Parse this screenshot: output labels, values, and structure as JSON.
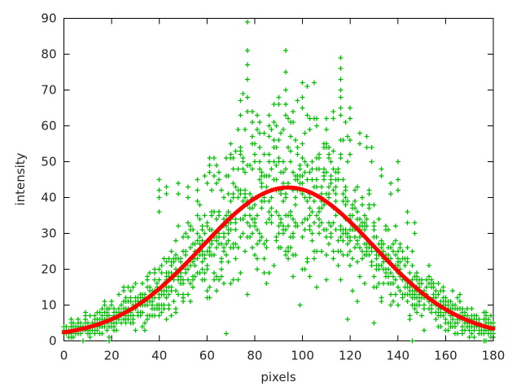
{
  "page": {
    "background": "#ffffff"
  },
  "chart_data": {
    "type": "scatter",
    "title": "",
    "xlabel": "pixels",
    "ylabel": "intensity",
    "xlim": [
      0,
      180
    ],
    "ylim": [
      0,
      90
    ],
    "xtick_values": [
      0,
      20,
      40,
      60,
      80,
      100,
      120,
      140,
      160,
      180
    ],
    "xtick_labels": [
      "0",
      "20",
      "40",
      "60",
      "80",
      "100",
      "120",
      "140",
      "160",
      "180"
    ],
    "ytick_values": [
      0,
      10,
      20,
      30,
      40,
      50,
      60,
      70,
      80,
      90
    ],
    "ytick_labels": [
      "0",
      "10",
      "20",
      "30",
      "40",
      "50",
      "60",
      "70",
      "80",
      "90"
    ],
    "grid": false,
    "legend_position": "none",
    "frame_color": "#000000",
    "text_color": "#262626",
    "scatter_series": {
      "name": "pixel-intensity-samples",
      "marker": "plus",
      "marker_color": "#00BF00",
      "marker_size_px": 7,
      "sampling": {
        "seed": 20140214,
        "x_min": 0,
        "x_max": 180,
        "x_step": 1,
        "samples_per_x": 8,
        "noise_sd_base": 0.9,
        "noise_sd_per_unit": 0.26,
        "quantize": 1,
        "clamp_min": 0,
        "clamp_max": 90
      },
      "bright_clusters": [
        {
          "x": 40,
          "values": [
            45,
            42,
            40,
            36
          ]
        },
        {
          "x": 43,
          "values": [
            43,
            41
          ]
        },
        {
          "x": 48,
          "values": [
            44,
            41
          ]
        },
        {
          "x": 52,
          "values": [
            43,
            40
          ]
        },
        {
          "x": 56,
          "values": [
            45,
            42
          ]
        },
        {
          "x": 61,
          "values": [
            51,
            49
          ]
        },
        {
          "x": 63,
          "values": [
            51,
            46
          ]
        },
        {
          "x": 65,
          "values": [
            47,
            45
          ]
        },
        {
          "x": 70,
          "values": [
            55,
            52
          ]
        },
        {
          "x": 74,
          "values": [
            67,
            63
          ]
        },
        {
          "x": 77,
          "values": [
            89,
            81,
            77,
            73,
            68,
            64
          ]
        },
        {
          "x": 79,
          "values": [
            64,
            61
          ]
        },
        {
          "x": 82,
          "values": [
            61,
            58
          ]
        },
        {
          "x": 86,
          "values": [
            63,
            60
          ]
        },
        {
          "x": 90,
          "values": [
            68,
            66
          ]
        },
        {
          "x": 93,
          "values": [
            81,
            75,
            75,
            70,
            66,
            63
          ]
        },
        {
          "x": 96,
          "values": [
            64,
            61
          ]
        },
        {
          "x": 100,
          "values": [
            72,
            68,
            65
          ]
        },
        {
          "x": 103,
          "values": [
            62,
            59
          ]
        },
        {
          "x": 106,
          "values": [
            62,
            60
          ]
        },
        {
          "x": 110,
          "values": [
            62,
            59
          ]
        },
        {
          "x": 113,
          "values": [
            64,
            62
          ]
        },
        {
          "x": 116,
          "values": [
            79,
            76,
            73,
            70,
            68,
            65,
            63
          ]
        },
        {
          "x": 120,
          "values": [
            65,
            62,
            56
          ]
        },
        {
          "x": 124,
          "values": [
            58,
            55
          ]
        },
        {
          "x": 127,
          "values": [
            57,
            54
          ]
        },
        {
          "x": 129,
          "values": [
            54,
            50
          ]
        },
        {
          "x": 133,
          "values": [
            48,
            46
          ]
        },
        {
          "x": 137,
          "values": [
            44,
            41
          ]
        },
        {
          "x": 140,
          "values": [
            50,
            45,
            42
          ]
        },
        {
          "x": 144,
          "values": [
            36,
            33
          ]
        },
        {
          "x": 147,
          "values": [
            33,
            30
          ]
        }
      ]
    },
    "fit_series": {
      "name": "gaussian-fit",
      "line_color": "#FF0000",
      "stroke_px": 5,
      "model": "gaussian",
      "baseline": 1.0,
      "amplitude": 41.8,
      "center": 94,
      "sigma": 36,
      "peak_value": 42.8,
      "value_at_x0": 2.4,
      "value_at_x180": 3.4
    }
  }
}
